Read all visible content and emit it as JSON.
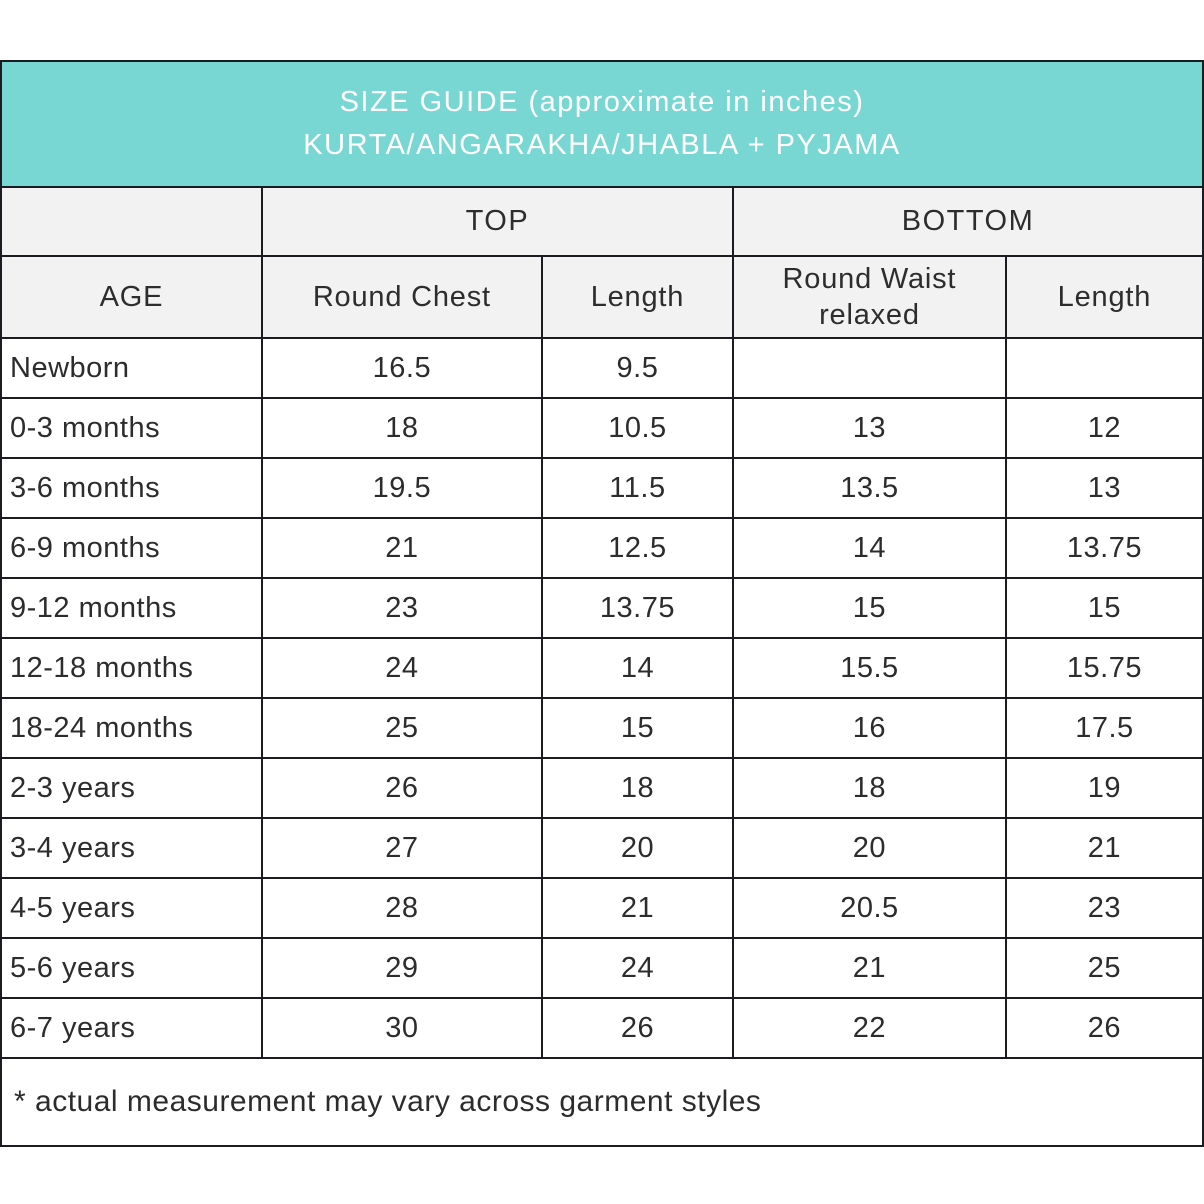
{
  "banner": {
    "line1": "SIZE GUIDE (approximate in inches)",
    "line2": "KURTA/ANGARAKHA/JHABLA + PYJAMA",
    "bg_color": "#79d7d3",
    "text_color": "#ffffff"
  },
  "table": {
    "group_headers": {
      "top": "TOP",
      "bottom": "BOTTOM"
    },
    "column_headers": [
      "AGE",
      "Round Chest",
      "Length",
      "Round Waist relaxed",
      "Length"
    ],
    "rows": [
      [
        "Newborn",
        "16.5",
        "9.5",
        "",
        ""
      ],
      [
        "0-3 months",
        "18",
        "10.5",
        "13",
        "12"
      ],
      [
        "3-6 months",
        "19.5",
        "11.5",
        "13.5",
        "13"
      ],
      [
        "6-9 months",
        "21",
        "12.5",
        "14",
        "13.75"
      ],
      [
        "9-12 months",
        "23",
        "13.75",
        "15",
        "15"
      ],
      [
        "12-18 months",
        "24",
        "14",
        "15.5",
        "15.75"
      ],
      [
        "18-24 months",
        "25",
        "15",
        "16",
        "17.5"
      ],
      [
        "2-3 years",
        "26",
        "18",
        "18",
        "19"
      ],
      [
        "3-4 years",
        "27",
        "20",
        "20",
        "21"
      ],
      [
        "4-5 years",
        "28",
        "21",
        "20.5",
        "23"
      ],
      [
        "5-6 years",
        "29",
        "24",
        "21",
        "25"
      ],
      [
        "6-7 years",
        "30",
        "26",
        "22",
        "26"
      ]
    ],
    "footnote": "* actual measurement may vary across garment styles"
  },
  "colors": {
    "banner_bg": "#79d7d3",
    "header_bg": "#f2f2f2",
    "border": "#1b1b22",
    "text": "#2c2c2c"
  }
}
